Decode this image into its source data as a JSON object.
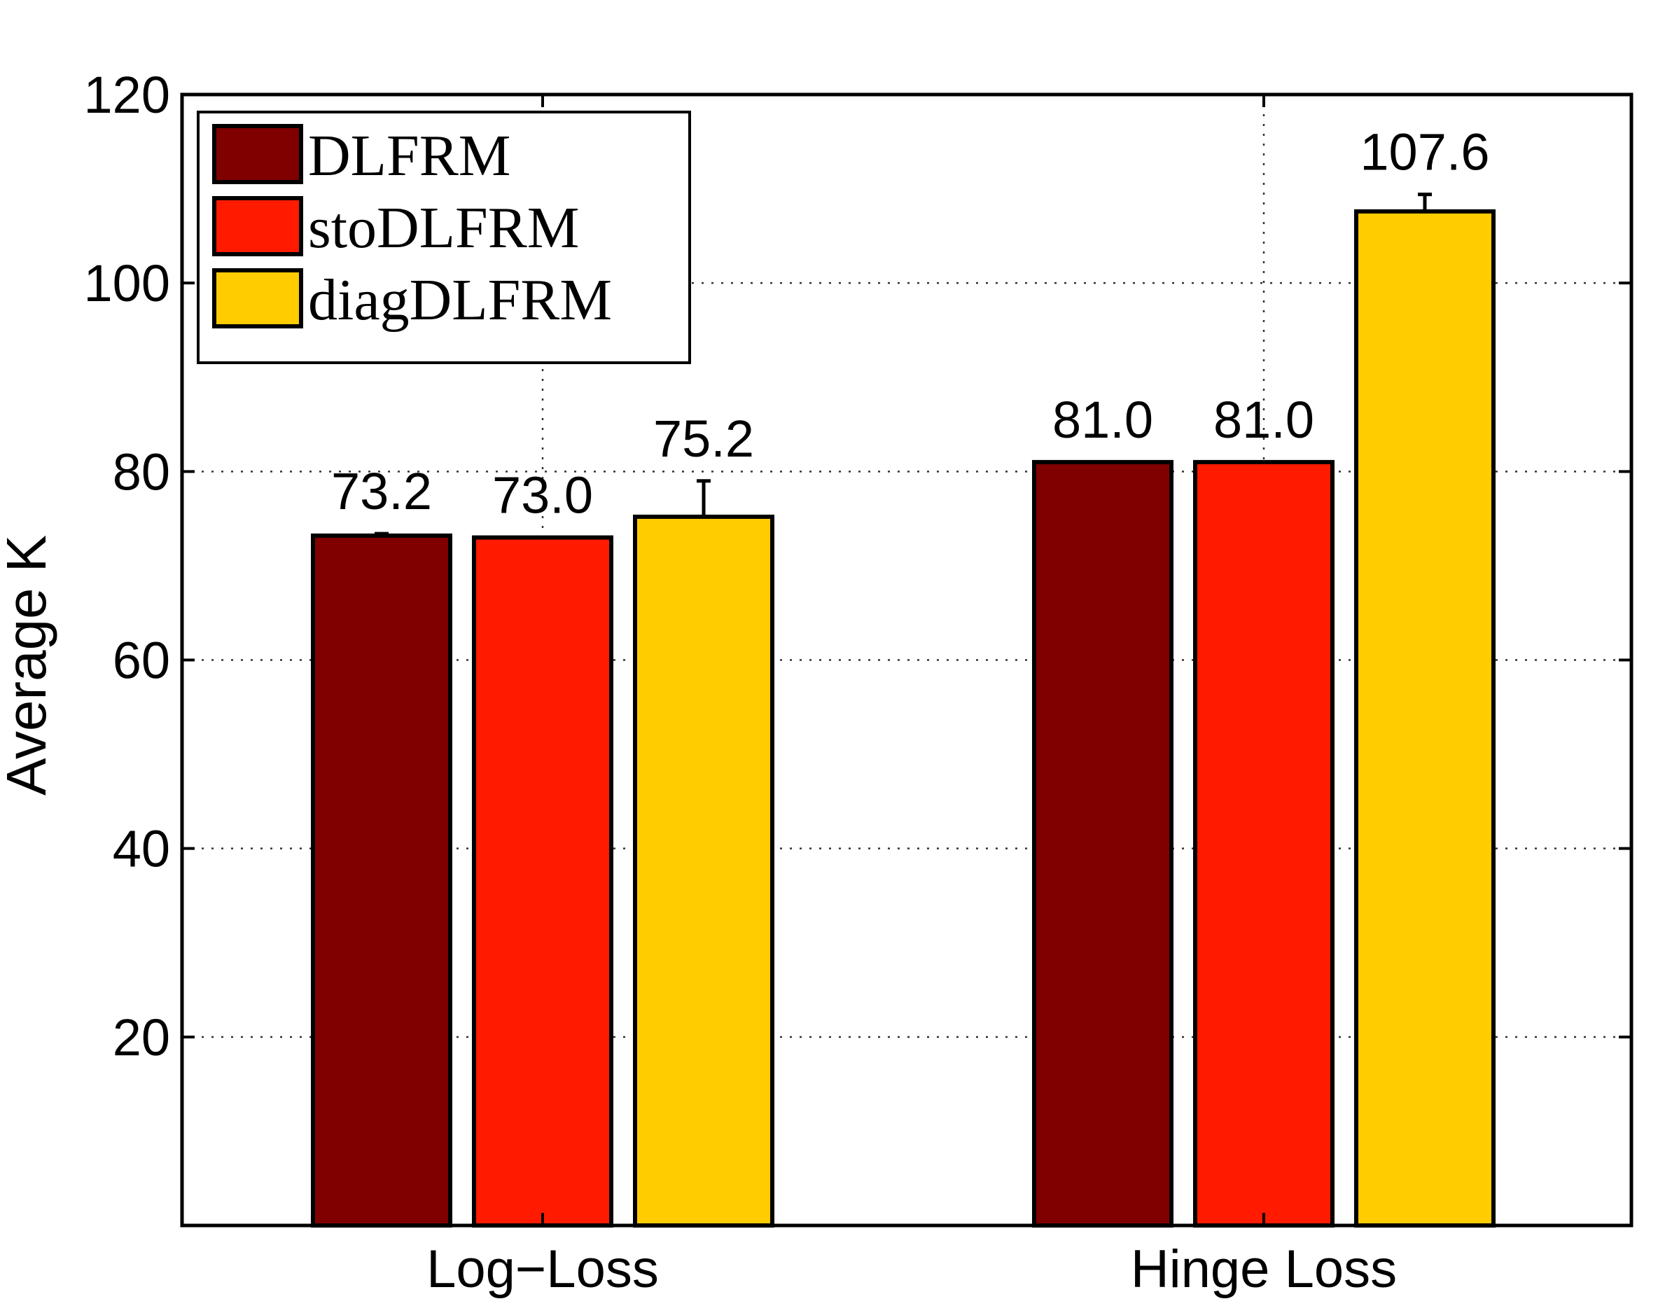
{
  "chart_data": {
    "type": "bar",
    "title": "",
    "xlabel": "",
    "ylabel": "Average K",
    "ylim": [
      0,
      120
    ],
    "yticks": [
      20,
      40,
      60,
      80,
      100,
      120
    ],
    "grid": true,
    "legend_position": "top-left",
    "categories": [
      "Log−Loss",
      "Hinge Loss"
    ],
    "series": [
      {
        "name": "DLFRM",
        "color": "#800000",
        "values": [
          73.2,
          81.0
        ],
        "errors": [
          0.2,
          0.0
        ]
      },
      {
        "name": "stoDLFRM",
        "color": "#ff1a00",
        "values": [
          73.0,
          81.0
        ],
        "errors": [
          0.0,
          0.0
        ]
      },
      {
        "name": "diagDLFRM",
        "color": "#ffcc00",
        "values": [
          75.2,
          107.6
        ],
        "errors": [
          3.8,
          1.8
        ]
      }
    ],
    "data_labels": [
      [
        "73.2",
        "81.0"
      ],
      [
        "73.0",
        "81.0"
      ],
      [
        "75.2",
        "107.6"
      ]
    ]
  }
}
